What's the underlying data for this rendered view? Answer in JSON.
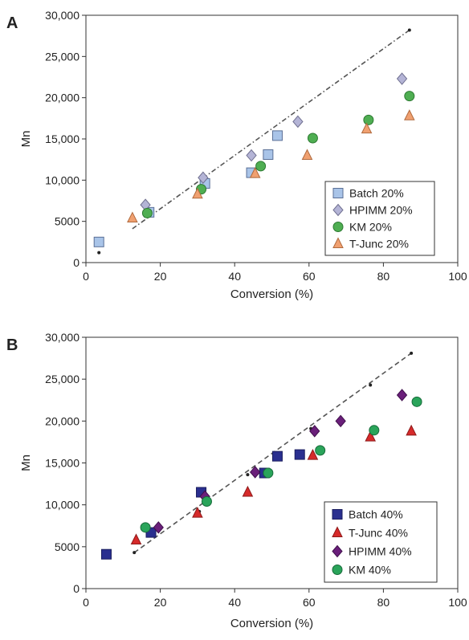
{
  "chart_data": [
    {
      "type": "scatter",
      "panel_label": "A",
      "xlabel": "Conversion (%)",
      "ylabel": "Mn",
      "xlim": [
        0,
        100
      ],
      "ylim": [
        0,
        30000
      ],
      "xticks": [
        "0",
        "20",
        "40",
        "60",
        "80",
        "100"
      ],
      "yticks": [
        "0",
        "5000",
        "10,000",
        "15,000",
        "20,000",
        "25,000",
        "30,000"
      ],
      "legend_position": "bottom-right",
      "grid": false,
      "trendline": {
        "style": "dash-dot",
        "color": "#555555",
        "points": [
          [
            12.5,
            4100
          ],
          [
            87,
            28200
          ]
        ],
        "end_markers": [
          [
            3.5,
            1200
          ],
          [
            87,
            28200
          ]
        ]
      },
      "series": [
        {
          "name": "Batch 20%",
          "marker": "square",
          "color": "#a9c4e8",
          "stroke": "#5a6f96",
          "points": [
            [
              3.5,
              2500
            ],
            [
              17,
              6100
            ],
            [
              32,
              9600
            ],
            [
              44.5,
              10900
            ],
            [
              49,
              13100
            ],
            [
              51.5,
              15400
            ]
          ]
        },
        {
          "name": "HPIMM 20%",
          "marker": "diamond",
          "color": "#b4b4d6",
          "stroke": "#707090",
          "points": [
            [
              16,
              7000
            ],
            [
              31.5,
              10300
            ],
            [
              44.5,
              13000
            ],
            [
              57,
              17100
            ],
            [
              85,
              22300
            ]
          ]
        },
        {
          "name": "KM 20%",
          "marker": "circle",
          "color": "#4fae52",
          "stroke": "#2d7a32",
          "points": [
            [
              16.5,
              6000
            ],
            [
              31,
              8900
            ],
            [
              47,
              11700
            ],
            [
              61,
              15100
            ],
            [
              76,
              17300
            ],
            [
              87,
              20200
            ]
          ]
        },
        {
          "name": "T-Junc 20%",
          "marker": "triangle",
          "color": "#f0a070",
          "stroke": "#b06a3e",
          "points": [
            [
              12.5,
              5400
            ],
            [
              30,
              8300
            ],
            [
              45.5,
              10800
            ],
            [
              59.5,
              13000
            ],
            [
              75.5,
              16200
            ],
            [
              87,
              17800
            ]
          ]
        }
      ]
    },
    {
      "type": "scatter",
      "panel_label": "B",
      "xlabel": "Conversion (%)",
      "ylabel": "Mn",
      "xlim": [
        0,
        100
      ],
      "ylim": [
        0,
        30000
      ],
      "xticks": [
        "0",
        "20",
        "40",
        "60",
        "80",
        "100"
      ],
      "yticks": [
        "0",
        "5000",
        "10,000",
        "15,000",
        "20,000",
        "25,000",
        "30,000"
      ],
      "legend_position": "bottom-right",
      "grid": false,
      "trendline": {
        "style": "dashed",
        "color": "#555555",
        "points": [
          [
            13,
            4300
          ],
          [
            87.5,
            28100
          ]
        ],
        "end_markers": [
          [
            13,
            4300
          ],
          [
            30.5,
            9200
          ],
          [
            43.5,
            13600
          ],
          [
            60.5,
            19100
          ],
          [
            76.5,
            24300
          ],
          [
            87.5,
            28100
          ]
        ]
      },
      "series": [
        {
          "name": "Batch 40%",
          "marker": "square",
          "color": "#2a2f8f",
          "stroke": "#1a1d5e",
          "points": [
            [
              5.5,
              4100
            ],
            [
              17.5,
              6700
            ],
            [
              31,
              11500
            ],
            [
              48,
              13800
            ],
            [
              51.5,
              15800
            ],
            [
              57.5,
              16000
            ]
          ]
        },
        {
          "name": "T-Junc 40%",
          "marker": "triangle",
          "color": "#d62a2a",
          "stroke": "#8e1a1a",
          "points": [
            [
              13.5,
              5800
            ],
            [
              30,
              9000
            ],
            [
              43.5,
              11500
            ],
            [
              61,
              15900
            ],
            [
              76.5,
              18100
            ],
            [
              87.5,
              18800
            ]
          ]
        },
        {
          "name": "HPIMM 40%",
          "marker": "diamond",
          "color": "#6a1f7a",
          "stroke": "#40104c",
          "points": [
            [
              19.5,
              7300
            ],
            [
              32,
              11000
            ],
            [
              45.5,
              13900
            ],
            [
              61.5,
              18800
            ],
            [
              68.5,
              20000
            ],
            [
              85,
              23100
            ]
          ]
        },
        {
          "name": "KM 40%",
          "marker": "circle",
          "color": "#2aa45a",
          "stroke": "#176b3a",
          "points": [
            [
              16,
              7300
            ],
            [
              32.5,
              10400
            ],
            [
              49,
              13800
            ],
            [
              63,
              16500
            ],
            [
              77.5,
              18900
            ],
            [
              89,
              22300
            ]
          ]
        }
      ]
    }
  ]
}
